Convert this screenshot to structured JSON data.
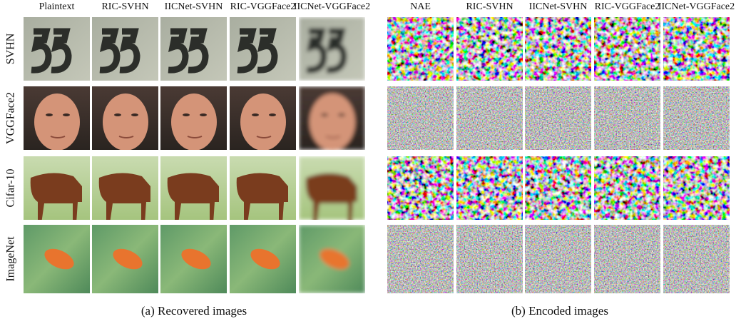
{
  "recovered": {
    "columns": [
      "Plaintext",
      "RIC-SVHN",
      "IICNet-SVHN",
      "RIC-VGGFace2",
      "IICNet-VGGFace2"
    ],
    "rows": [
      "SVHN",
      "VGGFace2",
      "Cifar-10",
      "ImageNet"
    ],
    "caption": "(a) Recovered images"
  },
  "encoded": {
    "columns": [
      "NAE",
      "RIC-SVHN",
      "IICNet-SVHN",
      "RIC-VGGFace2",
      "IICNet-VGGFace2"
    ],
    "caption": "(b) Encoded images"
  }
}
